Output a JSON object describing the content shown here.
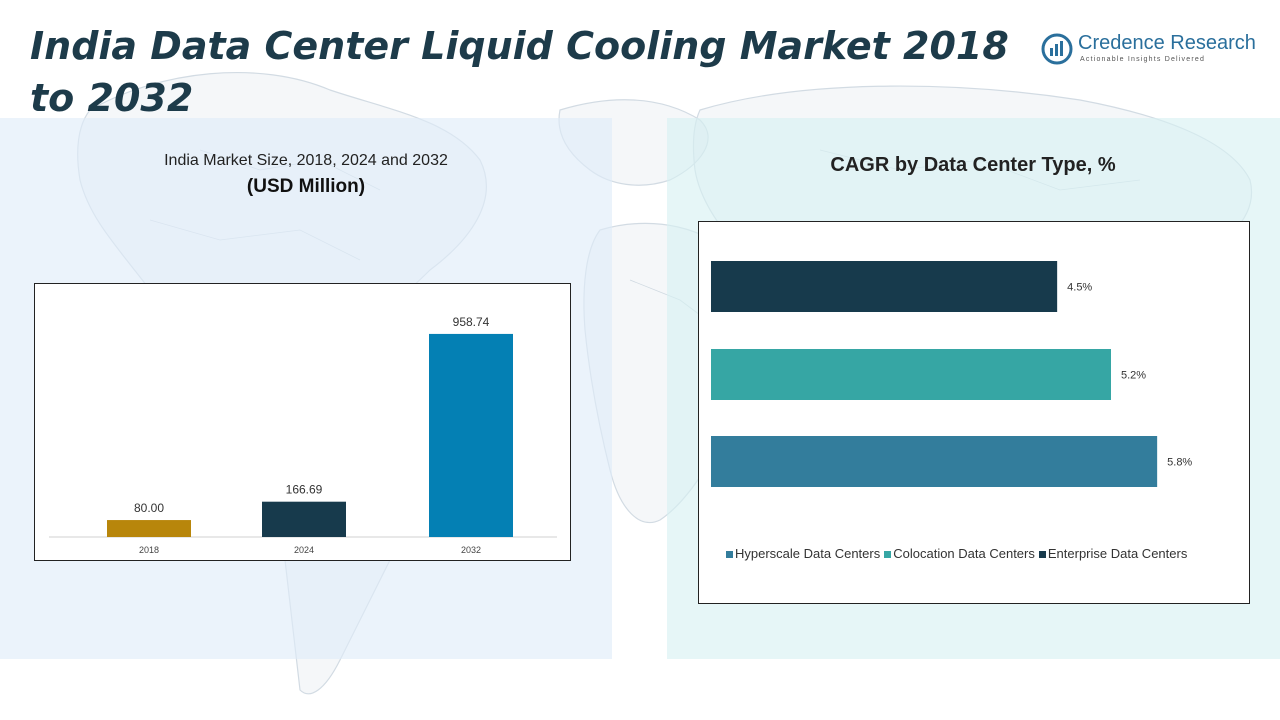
{
  "header": {
    "title": "India Data Center Liquid Cooling Market 2018 to 2032"
  },
  "logo": {
    "name": "Credence Research",
    "tagline": "Actionable Insights Delivered"
  },
  "left_panel": {
    "subtitle": "India Market Size, 2018, 2024 and 2032",
    "unit": "(USD Million)"
  },
  "right_panel": {
    "title": "CAGR by Data Center Type, %"
  },
  "colors": {
    "gold": "#b8860b",
    "dark_navy": "#173a4c",
    "blue": "#0480b4",
    "teal": "#36a6a4",
    "steel_blue": "#337d9c"
  },
  "chart_data": [
    {
      "type": "bar",
      "categories": [
        "2018",
        "2024",
        "2032"
      ],
      "values": [
        80.0,
        166.69,
        958.74
      ],
      "value_labels": [
        "80.00",
        "166.69",
        "958.74"
      ],
      "colors": [
        "#b8860b",
        "#173a4c",
        "#0480b4"
      ],
      "ylim": [
        0,
        1100
      ],
      "grid": false,
      "legend": "none"
    },
    {
      "type": "bar",
      "orientation": "horizontal",
      "series": [
        {
          "name": "Enterprise Data Centers",
          "value": 4.5,
          "label": "4.5%",
          "color": "#173a4c"
        },
        {
          "name": "Colocation Data Centers",
          "value": 5.2,
          "label": "5.2%",
          "color": "#36a6a4"
        },
        {
          "name": "Hyperscale Data Centers",
          "value": 5.8,
          "label": "5.8%",
          "color": "#337d9c"
        }
      ],
      "legend_order": [
        "Hyperscale Data Centers",
        "Colocation Data Centers",
        "Enterprise Data Centers"
      ],
      "xlim": [
        0,
        6.5
      ],
      "grid": false,
      "legend": "bottom"
    }
  ]
}
